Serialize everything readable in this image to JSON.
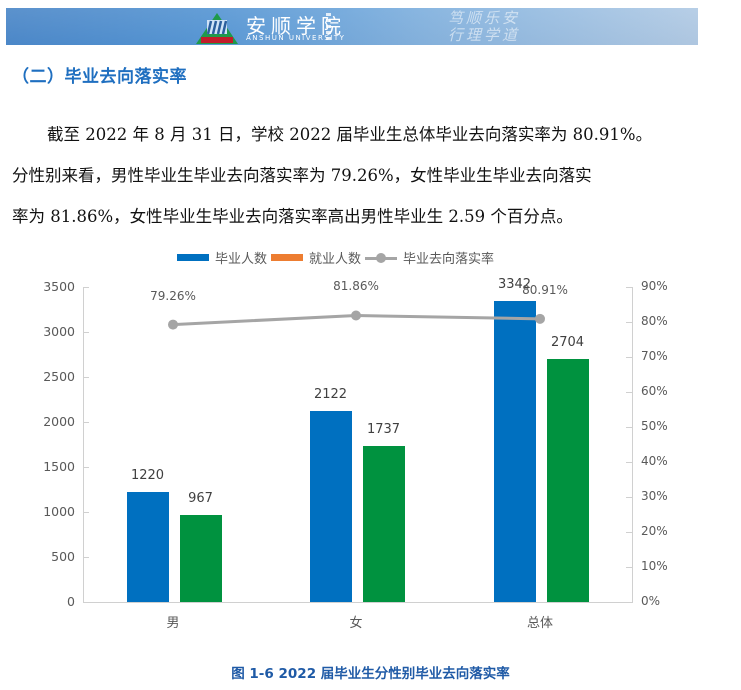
{
  "header": {
    "school_name_cn": "安顺学院",
    "school_name_en": "ANSHUN UNIVERSITY",
    "motto_line1": "笃顺乐安",
    "motto_line2": "行理学道"
  },
  "section": {
    "title": "（二）毕业去向落实率"
  },
  "paragraph": {
    "line1": "截至 2022 年 8 月 31 日，学校 2022 届毕业生总体毕业去向落实率为 80.91%。",
    "line2": "分性别来看，男性毕业生毕业去向落实率为 79.26%，女性毕业生毕业去向落实",
    "line3": "率为 81.86%，女性毕业生毕业去向落实率高出男性毕业生 2.59 个百分点。"
  },
  "chart_data": {
    "type": "bar",
    "title": "",
    "categories": [
      "男",
      "女",
      "总体"
    ],
    "series": [
      {
        "name": "毕业人数",
        "type": "bar",
        "axis": "left",
        "color": "#0070c0",
        "values": [
          1220,
          2122,
          3342
        ],
        "labels": [
          "1220",
          "2122",
          "3342"
        ]
      },
      {
        "name": "就业人数",
        "type": "bar",
        "axis": "left",
        "color": "#00923f",
        "legend_color": "#ed7d31",
        "values": [
          967,
          1737,
          2704
        ],
        "labels": [
          "967",
          "1737",
          "2704"
        ]
      },
      {
        "name": "毕业去向落实率",
        "type": "line",
        "axis": "right",
        "color": "#a5a5a5",
        "values": [
          79.26,
          81.86,
          80.91
        ],
        "labels": [
          "79.26%",
          "81.86%",
          "80.91%"
        ]
      }
    ],
    "legend": {
      "position": "top",
      "items": [
        {
          "label": "毕业人数",
          "color": "#0070c0",
          "kind": "bar"
        },
        {
          "label": "就业人数",
          "color": "#ed7d31",
          "kind": "bar"
        },
        {
          "label": "毕业去向落实率",
          "color": "#a5a5a5",
          "kind": "line"
        }
      ]
    },
    "y_left": {
      "ticks": [
        "0",
        "500",
        "1000",
        "1500",
        "2000",
        "2500",
        "3000",
        "3500"
      ],
      "ylim": [
        0,
        3500
      ]
    },
    "y_right": {
      "ticks": [
        "0%",
        "10%",
        "20%",
        "30%",
        "40%",
        "50%",
        "60%",
        "70%",
        "80%",
        "90%"
      ],
      "ylim": [
        0,
        90
      ]
    },
    "grid": false,
    "xlabel": "",
    "ylabel": ""
  },
  "caption": "图 1-6  2022 届毕业生分性别毕业去向落实率"
}
